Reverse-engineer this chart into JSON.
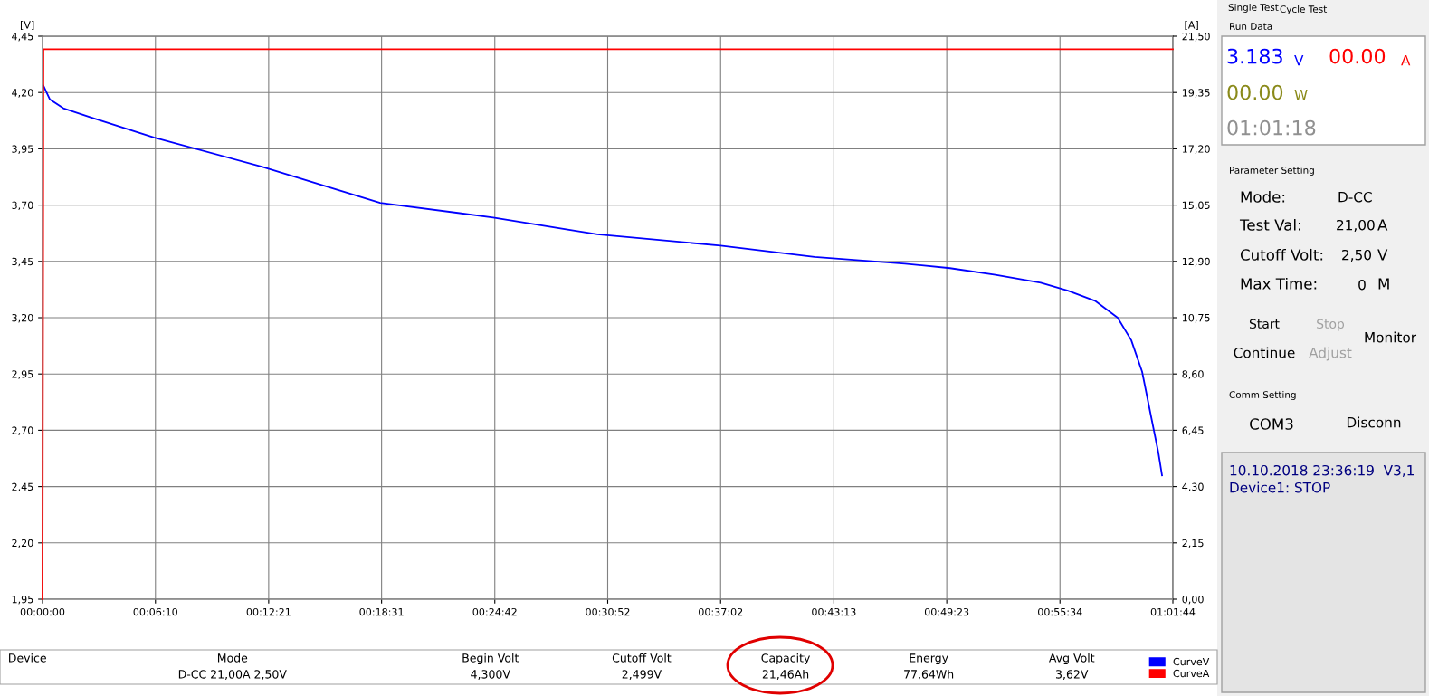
{
  "chart_data": [
    {
      "type": "line",
      "ylabel": "[V]",
      "y2label": "[A]",
      "xlim": [
        0,
        1.02889
      ],
      "xticks": [
        {
          "value": 0,
          "label": "00:00:00"
        },
        {
          "value": 0.10278,
          "label": "00:06:10"
        },
        {
          "value": 0.20583,
          "label": "00:12:21"
        },
        {
          "value": 0.30861,
          "label": "00:18:31"
        },
        {
          "value": 0.41167,
          "label": "00:24:42"
        },
        {
          "value": 0.51444,
          "label": "00:30:52"
        },
        {
          "value": 0.61722,
          "label": "00:37:02"
        },
        {
          "value": 0.72028,
          "label": "00:43:13"
        },
        {
          "value": 0.82306,
          "label": "00:49:23"
        },
        {
          "value": 0.92611,
          "label": "00:55:34"
        },
        {
          "value": 1.02889,
          "label": "01:01:44"
        }
      ],
      "ylim": [
        1.95,
        4.45
      ],
      "yticks": [
        {
          "value": 1.95,
          "label": "1,95"
        },
        {
          "value": 2.2,
          "label": "2,20"
        },
        {
          "value": 2.45,
          "label": "2,45"
        },
        {
          "value": 2.7,
          "label": "2,70"
        },
        {
          "value": 2.95,
          "label": "2,95"
        },
        {
          "value": 3.2,
          "label": "3,20"
        },
        {
          "value": 3.45,
          "label": "3,45"
        },
        {
          "value": 3.7,
          "label": "3,70"
        },
        {
          "value": 3.95,
          "label": "3,95"
        },
        {
          "value": 4.2,
          "label": "4,20"
        },
        {
          "value": 4.45,
          "label": "4,45"
        }
      ],
      "y2lim": [
        0,
        21.5
      ],
      "y2ticks": [
        {
          "value": 0,
          "label": "0,00"
        },
        {
          "value": 2.15,
          "label": "2,15"
        },
        {
          "value": 4.3,
          "label": "4,30"
        },
        {
          "value": 6.45,
          "label": "6,45"
        },
        {
          "value": 8.6,
          "label": "8,60"
        },
        {
          "value": 10.75,
          "label": "10,75"
        },
        {
          "value": 12.9,
          "label": "12,90"
        },
        {
          "value": 15.05,
          "label": "15,05"
        },
        {
          "value": 17.2,
          "label": "17,20"
        },
        {
          "value": 19.35,
          "label": "19,35"
        },
        {
          "value": 21.5,
          "label": "21,50"
        }
      ],
      "grid": true,
      "legend": "bottom right",
      "series": [
        {
          "name": "CurveV",
          "color": "#0000ff",
          "x": [
            0.0008,
            0.0066,
            0.0189,
            0.0437,
            0.1013,
            0.2002,
            0.3073,
            0.4102,
            0.505,
            0.6171,
            0.7027,
            0.785,
            0.826,
            0.8674,
            0.9086,
            0.9333,
            0.958,
            0.9786,
            0.991,
            1.0009,
            1.0091,
            1.0157,
            1.019
          ],
          "values": [
            4.23,
            4.17,
            4.13,
            4.09,
            4.0,
            3.87,
            3.71,
            3.645,
            3.57,
            3.52,
            3.47,
            3.44,
            3.42,
            3.39,
            3.355,
            3.32,
            3.275,
            3.2,
            3.1,
            2.96,
            2.76,
            2.6,
            2.5
          ]
        },
        {
          "name": "CurveA",
          "color": "#ff0000",
          "axis": "y2",
          "x": [
            0,
            0.0008,
            1.02889
          ],
          "values": [
            0,
            21.0,
            21.0
          ]
        }
      ],
      "annotations": [
        "Device",
        "Mode",
        "D-CC 21,00A 2,50V",
        "Begin Volt",
        "4,300V",
        "Cutoff Volt",
        "2,499V",
        "Capacity",
        "21,46Ah",
        "Energy",
        "77,64Wh",
        "Avg Volt",
        "3,62V"
      ]
    },
    {
      "type": "other",
      "annotations": [
        "Single Test",
        "Cycle Test",
        "Run Data",
        "3.183",
        "V",
        "00.00",
        "A",
        "00.00",
        "W",
        "01:01:18",
        "Parameter Setting",
        "Mode:",
        "D-CC",
        "Test Val:",
        "21,00",
        "A",
        "Cutoff Volt:",
        "2,50",
        "V",
        "Max Time:",
        "0",
        "M",
        "Start",
        "Stop",
        "Monitor",
        "Continue",
        "Adjust",
        "Comm Setting",
        "COM3",
        "Disconn",
        "10.10.2018 23:36:19  V3,1",
        "Device1: STOP"
      ]
    }
  ]
}
